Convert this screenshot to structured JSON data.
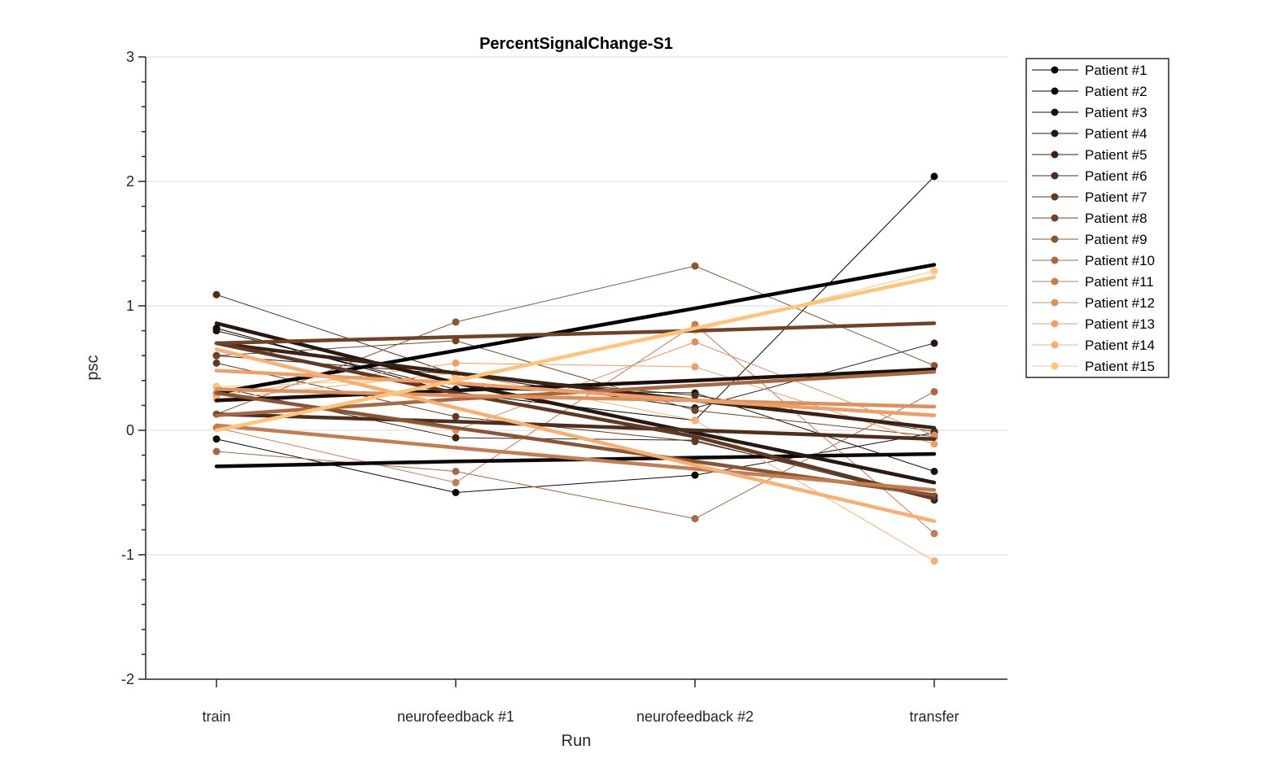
{
  "chart_data": {
    "type": "line",
    "title": "PercentSignalChange-S1",
    "xlabel": "Run",
    "ylabel": "psc",
    "categories": [
      "train",
      "neurofeedback #1",
      "neurofeedback #2",
      "transfer"
    ],
    "ylim": [
      -2,
      3
    ],
    "yticks": [
      -2,
      -1,
      0,
      1,
      2,
      3
    ],
    "grid": true,
    "legend_position": "outside-top-right",
    "series": [
      {
        "name": "Patient #1",
        "color": "#000000",
        "values": [
          0.82,
          0.3,
          0.08,
          2.04
        ],
        "trend": [
          0.3,
          0.64,
          0.98,
          1.33
        ]
      },
      {
        "name": "Patient #2",
        "color": "#0d0805",
        "values": [
          -0.07,
          -0.5,
          -0.36,
          -0.02
        ],
        "trend": [
          -0.29,
          -0.25,
          -0.22,
          -0.19
        ]
      },
      {
        "name": "Patient #3",
        "color": "#1a0f0a",
        "values": [
          0.8,
          0.33,
          0.3,
          -0.33
        ],
        "trend": [
          0.24,
          0.32,
          0.4,
          0.49
        ]
      },
      {
        "name": "Patient #4",
        "color": "#281810",
        "values": [
          0.6,
          0.45,
          0.18,
          0.7
        ],
        "trend": [
          0.86,
          0.38,
          -0.02,
          -0.42
        ]
      },
      {
        "name": "Patient #5",
        "color": "#3a2215",
        "values": [
          0.35,
          -0.06,
          -0.08,
          -0.56
        ],
        "trend": [
          0.7,
          0.46,
          0.24,
          0.02
        ]
      },
      {
        "name": "Patient #6",
        "color": "#4e2e1c",
        "values": [
          1.09,
          0.45,
          0.28,
          -0.01
        ],
        "trend": [
          0.13,
          0.07,
          0.0,
          -0.07
        ]
      },
      {
        "name": "Patient #7",
        "color": "#5f3922",
        "values": [
          0.54,
          0.11,
          -0.09,
          -0.53
        ],
        "trend": [
          0.7,
          0.3,
          -0.05,
          -0.55
        ]
      },
      {
        "name": "Patient #8",
        "color": "#704328",
        "values": [
          0.6,
          0.72,
          0.16,
          -0.05
        ],
        "trend": [
          0.7,
          0.75,
          0.8,
          0.86
        ]
      },
      {
        "name": "Patient #9",
        "color": "#8a5535",
        "values": [
          0.13,
          0.87,
          1.32,
          0.52
        ],
        "trend": [
          0.3,
          0.02,
          -0.25,
          -0.52
        ]
      },
      {
        "name": "Patient #10",
        "color": "#a86843",
        "values": [
          -0.17,
          -0.33,
          -0.71,
          0.31
        ],
        "trend": [
          0.12,
          0.25,
          0.36,
          0.47
        ]
      },
      {
        "name": "Patient #11",
        "color": "#c47c52",
        "values": [
          0.02,
          -0.42,
          0.85,
          -0.83
        ],
        "trend": [
          0.04,
          -0.14,
          -0.31,
          -0.48
        ]
      },
      {
        "name": "Patient #12",
        "color": "#dd8f5e",
        "values": [
          0.3,
          0.0,
          0.71,
          -0.04
        ],
        "trend": [
          0.33,
          0.28,
          0.24,
          0.19
        ]
      },
      {
        "name": "Patient #13",
        "color": "#f09e67",
        "values": [
          0.28,
          0.54,
          0.51,
          -0.11
        ],
        "trend": [
          0.48,
          0.38,
          0.24,
          0.12
        ]
      },
      {
        "name": "Patient #14",
        "color": "#f8b072",
        "values": [
          0.25,
          0.46,
          0.08,
          -1.05
        ],
        "trend": [
          0.65,
          0.18,
          -0.28,
          -0.73
        ]
      },
      {
        "name": "Patient #15",
        "color": "#ffc47a",
        "values": [
          0.35,
          0.42,
          0.8,
          1.28
        ],
        "trend": [
          0.0,
          0.4,
          0.82,
          1.23
        ]
      }
    ]
  }
}
